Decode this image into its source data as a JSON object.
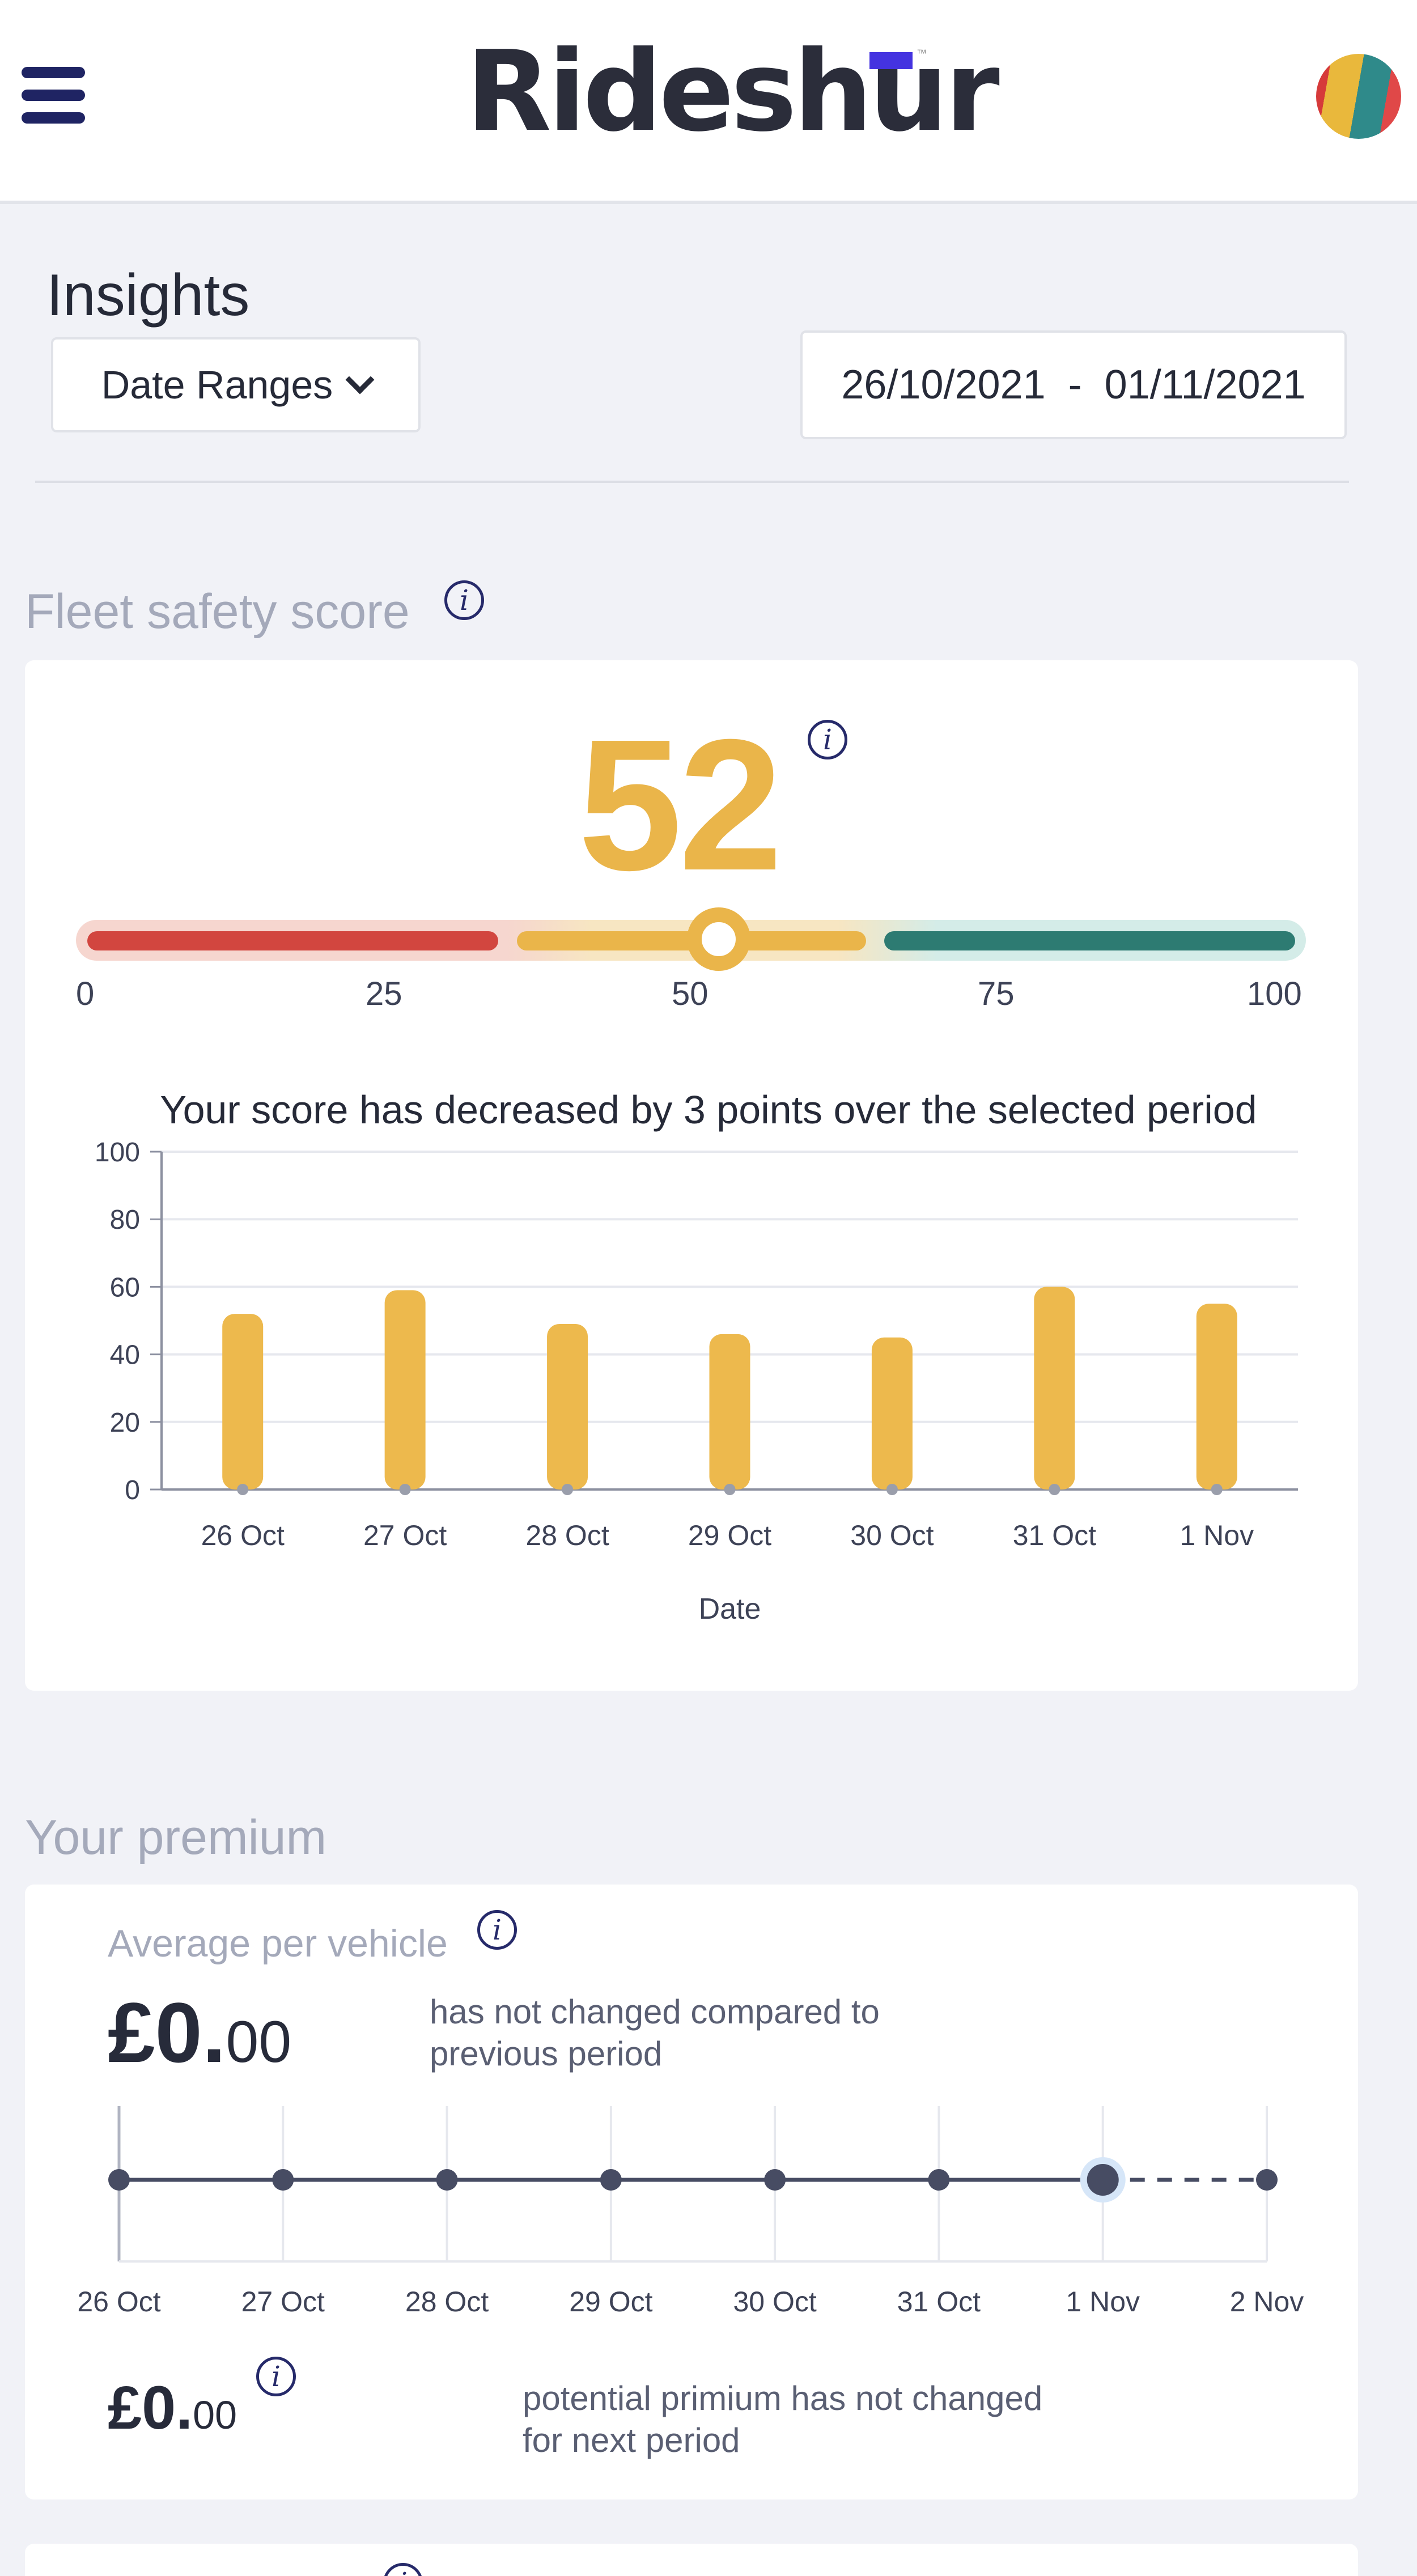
{
  "header": {
    "logo_text": "Rideshur",
    "logo_mark": "™",
    "menu_icon": "hamburger-menu-icon",
    "avatar_icon": "user-avatar"
  },
  "insights": {
    "title": "Insights",
    "date_ranges_label": "Date Ranges",
    "date_from": "26/10/2021",
    "date_sep": "-",
    "date_to": "01/11/2021"
  },
  "safety": {
    "section_title": "Fleet safety score",
    "score": "52",
    "score_value": 52,
    "gauge_ticks": [
      "0",
      "25",
      "50",
      "75",
      "100"
    ],
    "gauge_colors": {
      "low": "#d2463f",
      "mid": "#eab54a",
      "high": "#2d7b72"
    },
    "caption": "Your score has decreased by 3 points over the selected period"
  },
  "chart_data": {
    "type": "bar",
    "categories": [
      "26 Oct",
      "27 Oct",
      "28 Oct",
      "29 Oct",
      "30 Oct",
      "31 Oct",
      "1 Nov"
    ],
    "values": [
      52,
      59,
      49,
      46,
      45,
      60,
      55
    ],
    "xlabel": "Date",
    "ylabel": "",
    "ylim": [
      0,
      100
    ],
    "yticks": [
      "0",
      "20",
      "40",
      "60",
      "80",
      "100"
    ],
    "grid": true,
    "bar_color": "#edb94d"
  },
  "premium": {
    "section_title": "Your premium",
    "avg_label": "Average per vehicle",
    "avg_pounds": "£0.",
    "avg_pence": "00",
    "avg_note_line1": "has not changed compared to",
    "avg_note_line2": "previous period",
    "timeline_labels": [
      "26 Oct",
      "27 Oct",
      "28 Oct",
      "29 Oct",
      "30 Oct",
      "31 Oct",
      "1 Nov",
      "2 Nov"
    ],
    "timeline_values": [
      0,
      0,
      0,
      0,
      0,
      0,
      0,
      0
    ],
    "timeline_highlight": "1 Nov",
    "potential_pounds": "£0.",
    "potential_pence": "00",
    "potential_note_line1": "potential primium has not changed",
    "potential_note_line2": "for next period"
  }
}
